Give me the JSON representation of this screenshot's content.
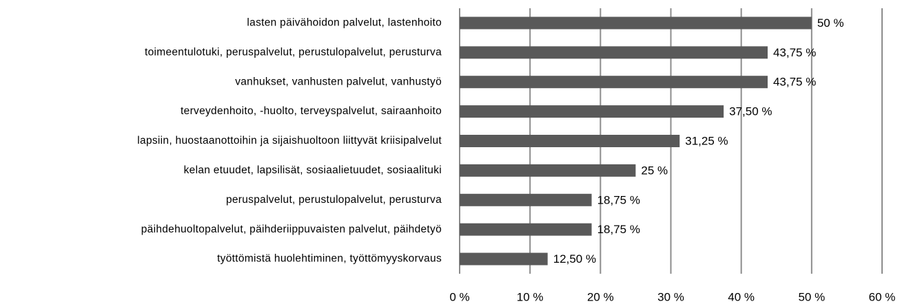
{
  "chart_data": {
    "type": "bar",
    "orientation": "horizontal",
    "categories": [
      "lasten päivähoidon palvelut, lastenhoito",
      "toimeentulotuki, peruspalvelut, perustulopalvelut, perusturva",
      "vanhukset, vanhusten palvelut, vanhustyö",
      "terveydenhoito, -huolto, terveyspalvelut, sairaanhoito",
      "lapsiin, huostaanottoihin ja sijaishuoltoon liittyvät kriisipalvelut",
      "kelan etuudet, lapsilisät, sosiaalietuudet, sosiaalituki",
      "peruspalvelut, perustulopalvelut, perusturva",
      "päihdehuoltopalvelut, päihderiippuvaisten palvelut, päihdetyö",
      "työttömistä huolehtiminen, työttömyyskorvaus"
    ],
    "values": [
      50,
      43.75,
      43.75,
      37.5,
      31.25,
      25,
      18.75,
      18.75,
      12.5
    ],
    "value_labels": [
      "50 %",
      "43,75 %",
      "43,75 %",
      "37,50 %",
      "31,25 %",
      "25 %",
      "18,75 %",
      "18,75 %",
      "12,50 %"
    ],
    "color": "#595959",
    "xlim": [
      0,
      60
    ],
    "xticks": [
      {
        "value": 0,
        "label": "0 %"
      },
      {
        "value": 10,
        "label": "10 %"
      },
      {
        "value": 20,
        "label": "20 %"
      },
      {
        "value": 30,
        "label": "30 %"
      },
      {
        "value": 40,
        "label": "40 %"
      },
      {
        "value": 50,
        "label": "50 %"
      },
      {
        "value": 60,
        "label": "60 %"
      }
    ],
    "grid": true
  }
}
